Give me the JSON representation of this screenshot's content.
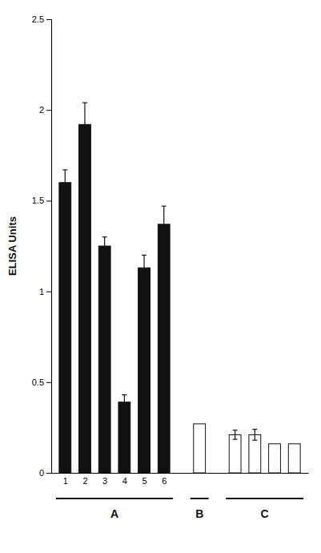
{
  "chart_data": {
    "type": "bar",
    "ylabel": "ELISA Units",
    "categories": [
      "1",
      "2",
      "3",
      "4",
      "5",
      "6",
      null,
      null,
      null,
      null,
      null
    ],
    "values": [
      1.6,
      1.92,
      1.25,
      0.39,
      1.13,
      1.37,
      0.27,
      0.21,
      0.21,
      0.16,
      0.16
    ],
    "errors": [
      0.07,
      0.12,
      0.05,
      0.04,
      0.07,
      0.1,
      0.0,
      0.025,
      0.03,
      0.0,
      0.0
    ],
    "colors": [
      "#111111",
      "#111111",
      "#111111",
      "#111111",
      "#111111",
      "#111111",
      "#ffffff",
      "#ffffff",
      "#ffffff",
      "#ffffff",
      "#ffffff"
    ],
    "groups": [
      "A",
      "A",
      "A",
      "A",
      "A",
      "A",
      "B",
      "C",
      "C",
      "C",
      "C"
    ],
    "ylim": [
      0,
      2.5
    ],
    "yticks": [
      0,
      0.5,
      1,
      1.5,
      2,
      2.5
    ],
    "grid": false
  }
}
